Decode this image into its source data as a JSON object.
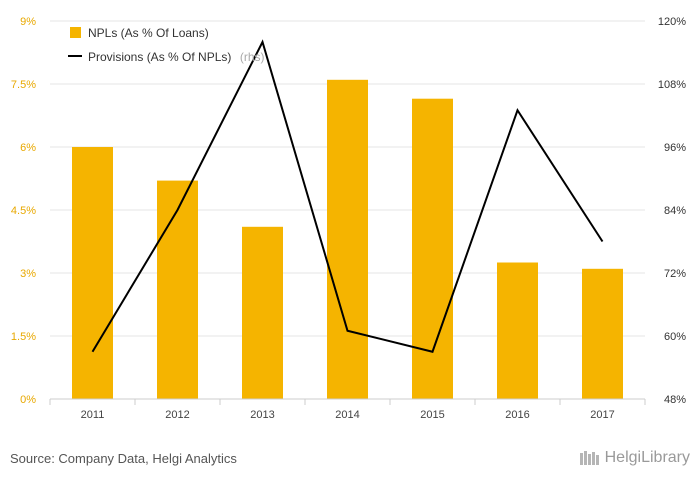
{
  "chart_data": {
    "type": "bar",
    "categories": [
      "2011",
      "2012",
      "2013",
      "2014",
      "2015",
      "2016",
      "2017"
    ],
    "series": [
      {
        "name": "NPLs (As % Of Loans)",
        "type": "bar",
        "axis": "left",
        "color": "#f5b400",
        "values": [
          6.0,
          5.2,
          4.1,
          7.6,
          7.15,
          3.25,
          3.1
        ]
      },
      {
        "name": "Provisions (As % Of NPLs)",
        "type": "line",
        "axis": "right",
        "color": "#000000",
        "values": [
          57,
          84,
          116,
          61,
          57,
          103,
          78
        ]
      }
    ],
    "left_axis": {
      "min": 0,
      "max": 9,
      "ticks": [
        "0%",
        "1.5%",
        "3%",
        "4.5%",
        "6%",
        "7.5%",
        "9%"
      ]
    },
    "right_axis": {
      "min": 48,
      "max": 120,
      "ticks": [
        "48%",
        "60%",
        "72%",
        "84%",
        "96%",
        "108%",
        "120%"
      ]
    },
    "legend_suffix": "(rhs)",
    "grid": true,
    "legend_position": "top-left"
  },
  "footer": {
    "source": "Source: Company Data, Helgi Analytics",
    "brand": "HelgiLibrary"
  }
}
